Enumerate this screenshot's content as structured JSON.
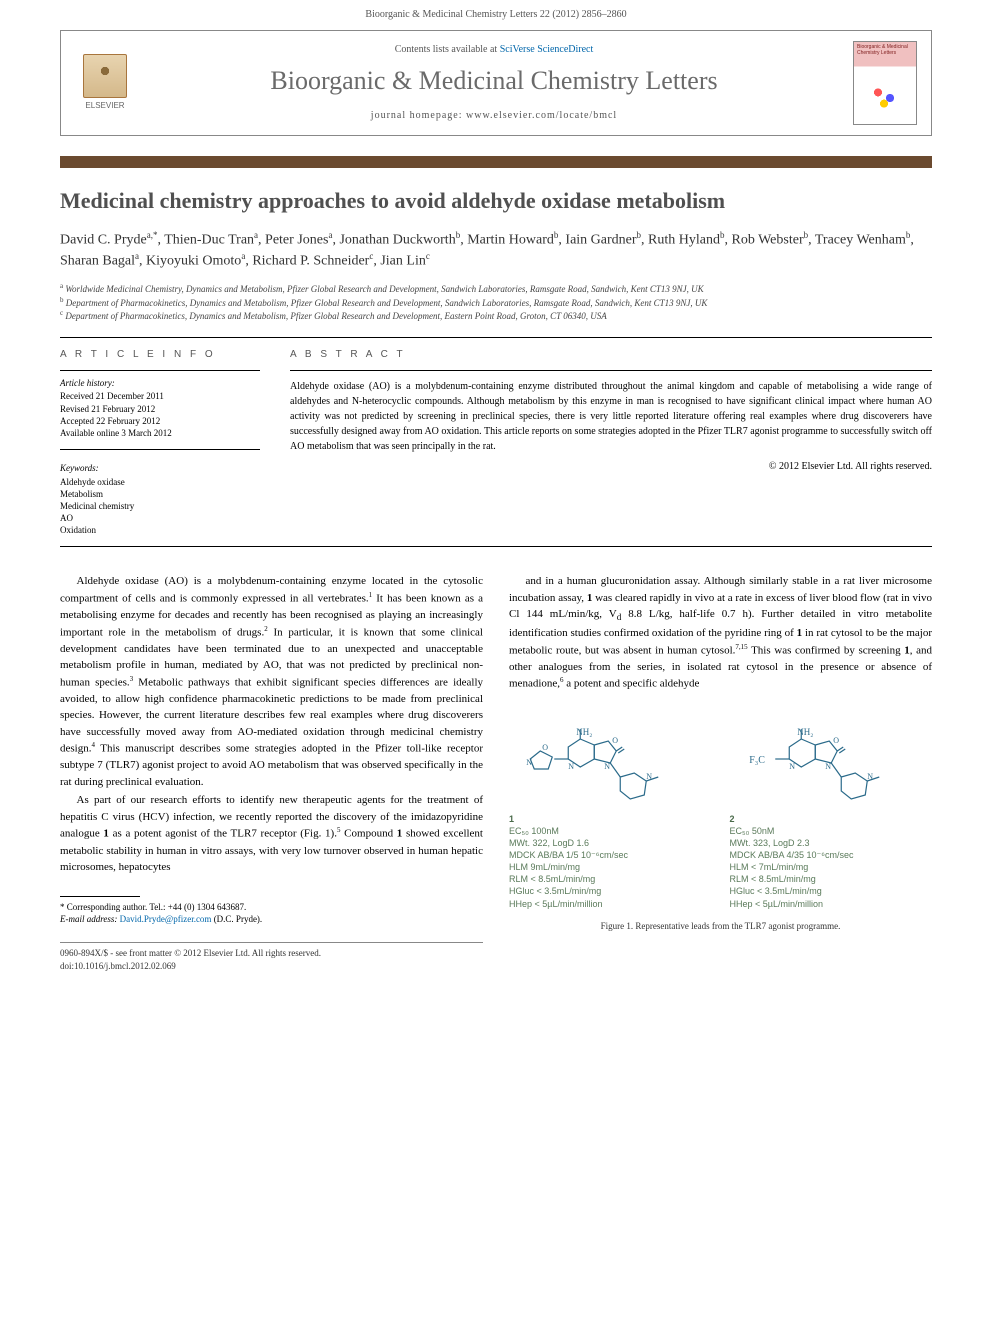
{
  "header": {
    "citation": "Bioorganic & Medicinal Chemistry Letters 22 (2012) 2856–2860"
  },
  "masthead": {
    "publisher": "ELSEVIER",
    "contents_prefix": "Contents lists available at ",
    "contents_link": "SciVerse ScienceDirect",
    "journal_name": "Bioorganic & Medicinal Chemistry Letters",
    "homepage_prefix": "journal homepage: ",
    "homepage_url": "www.elsevier.com/locate/bmcl",
    "cover_title": "Bioorganic & Medicinal Chemistry Letters"
  },
  "article": {
    "title": "Medicinal chemistry approaches to avoid aldehyde oxidase metabolism",
    "authors_html": "David C. Pryde<sup>a,*</sup>, Thien-Duc Tran<sup>a</sup>, Peter Jones<sup>a</sup>, Jonathan Duckworth<sup>b</sup>, Martin Howard<sup>b</sup>, Iain Gardner<sup>b</sup>, Ruth Hyland<sup>b</sup>, Rob Webster<sup>b</sup>, Tracey Wenham<sup>b</sup>, Sharan Bagal<sup>a</sup>, Kiyoyuki Omoto<sup>a</sup>, Richard P. Schneider<sup>c</sup>, Jian Lin<sup>c</sup>",
    "affiliations": [
      "<sup>a</sup> Worldwide Medicinal Chemistry, Dynamics and Metabolism, Pfizer Global Research and Development, Sandwich Laboratories, Ramsgate Road, Sandwich, Kent CT13 9NJ, UK",
      "<sup>b</sup> Department of Pharmacokinetics, Dynamics and Metabolism, Pfizer Global Research and Development, Sandwich Laboratories, Ramsgate Road, Sandwich, Kent CT13 9NJ, UK",
      "<sup>c</sup> Department of Pharmacokinetics, Dynamics and Metabolism, Pfizer Global Research and Development, Eastern Point Road, Groton, CT 06340, USA"
    ]
  },
  "meta": {
    "info_heading": "A R T I C L E   I N F O",
    "abstract_heading": "A B S T R A C T",
    "history_label": "Article history:",
    "history": [
      "Received 21 December 2011",
      "Revised 21 February 2012",
      "Accepted 22 February 2012",
      "Available online 3 March 2012"
    ],
    "keywords_label": "Keywords:",
    "keywords": [
      "Aldehyde oxidase",
      "Metabolism",
      "Medicinal chemistry",
      "AO",
      "Oxidation"
    ],
    "abstract": "Aldehyde oxidase (AO) is a molybdenum-containing enzyme distributed throughout the animal kingdom and capable of metabolising a wide range of aldehydes and N-heterocyclic compounds. Although metabolism by this enzyme in man is recognised to have significant clinical impact where human AO activity was not predicted by screening in preclinical species, there is very little reported literature offering real examples where drug discoverers have successfully designed away from AO oxidation. This article reports on some strategies adopted in the Pfizer TLR7 agonist programme to successfully switch off AO metabolism that was seen principally in the rat.",
    "copyright": "© 2012 Elsevier Ltd. All rights reserved."
  },
  "body": {
    "left_paragraphs": [
      "Aldehyde oxidase (AO) is a molybdenum-containing enzyme located in the cytosolic compartment of cells and is commonly expressed in all vertebrates.<sup>1</sup> It has been known as a metabolising enzyme for decades and recently has been recognised as playing an increasingly important role in the metabolism of drugs.<sup>2</sup> In particular, it is known that some clinical development candidates have been terminated due to an unexpected and unacceptable metabolism profile in human, mediated by AO, that was not predicted by preclinical non-human species.<sup>3</sup> Metabolic pathways that exhibit significant species differences are ideally avoided, to allow high confidence pharmacokinetic predictions to be made from preclinical species. However, the current literature describes few real examples where drug discoverers have successfully moved away from AO-mediated oxidation through medicinal chemistry design.<sup>4</sup> This manuscript describes some strategies adopted in the Pfizer toll-like receptor subtype 7 (TLR7) agonist project to avoid AO metabolism that was observed specifically in the rat during preclinical evaluation.",
      "As part of our research efforts to identify new therapeutic agents for the treatment of hepatitis C virus (HCV) infection, we recently reported the discovery of the imidazopyridine analogue <b>1</b> as a potent agonist of the TLR7 receptor (Fig. 1).<sup>5</sup> Compound <b>1</b> showed excellent metabolic stability in human in vitro assays, with very low turnover observed in human hepatic microsomes, hepatocytes"
    ],
    "right_paragraphs": [
      "and in a human glucuronidation assay. Although similarly stable in a rat liver microsome incubation assay, <b>1</b> was cleared rapidly in vivo at a rate in excess of liver blood flow (rat in vivo Cl 144 mL/min/kg, V<sub>d</sub> 8.8 L/kg, half-life 0.7 h). Further detailed in vitro metabolite identification studies confirmed oxidation of the pyridine ring of <b>1</b> in rat cytosol to be the major metabolic route, but was absent in human cytosol.<sup>7,15</sup> This was confirmed by screening <b>1</b>, and other analogues from the series, in isolated rat cytosol in the presence or absence of menadione,<sup>6</sup> a potent and specific aldehyde"
    ]
  },
  "figure": {
    "compounds": [
      {
        "num": "1",
        "substituent": "oxazole",
        "data": [
          "EC₅₀ 100nM",
          "MWt. 322, LogD 1.6",
          "MDCK AB/BA 1/5 10⁻⁶cm/sec",
          "HLM 9mL/min/mg",
          "RLM < 8.5mL/min/mg",
          "HGluc < 3.5mL/min/mg",
          "HHep < 5µL/min/million"
        ]
      },
      {
        "num": "2",
        "substituent": "CF3",
        "data": [
          "EC₅₀ 50nM",
          "MWt. 323, LogD 2.3",
          "MDCK AB/BA 4/35 10⁻⁶cm/sec",
          "HLM < 7mL/min/mg",
          "RLM < 8.5mL/min/mg",
          "HGluc < 3.5mL/min/mg",
          "HHep < 5µL/min/million"
        ]
      }
    ],
    "caption": "Figure 1. Representative leads from the TLR7 agonist programme.",
    "structure_color": "#2a6a8a"
  },
  "footnote": {
    "corresponding": "* Corresponding author. Tel.: +44 (0) 1304 643687.",
    "email_label": "E-mail address: ",
    "email": "David.Pryde@pfizer.com",
    "email_suffix": " (D.C. Pryde)."
  },
  "bottom": {
    "line1": "0960-894X/$ - see front matter © 2012 Elsevier Ltd. All rights reserved.",
    "line2": "doi:10.1016/j.bmcl.2012.02.069"
  }
}
